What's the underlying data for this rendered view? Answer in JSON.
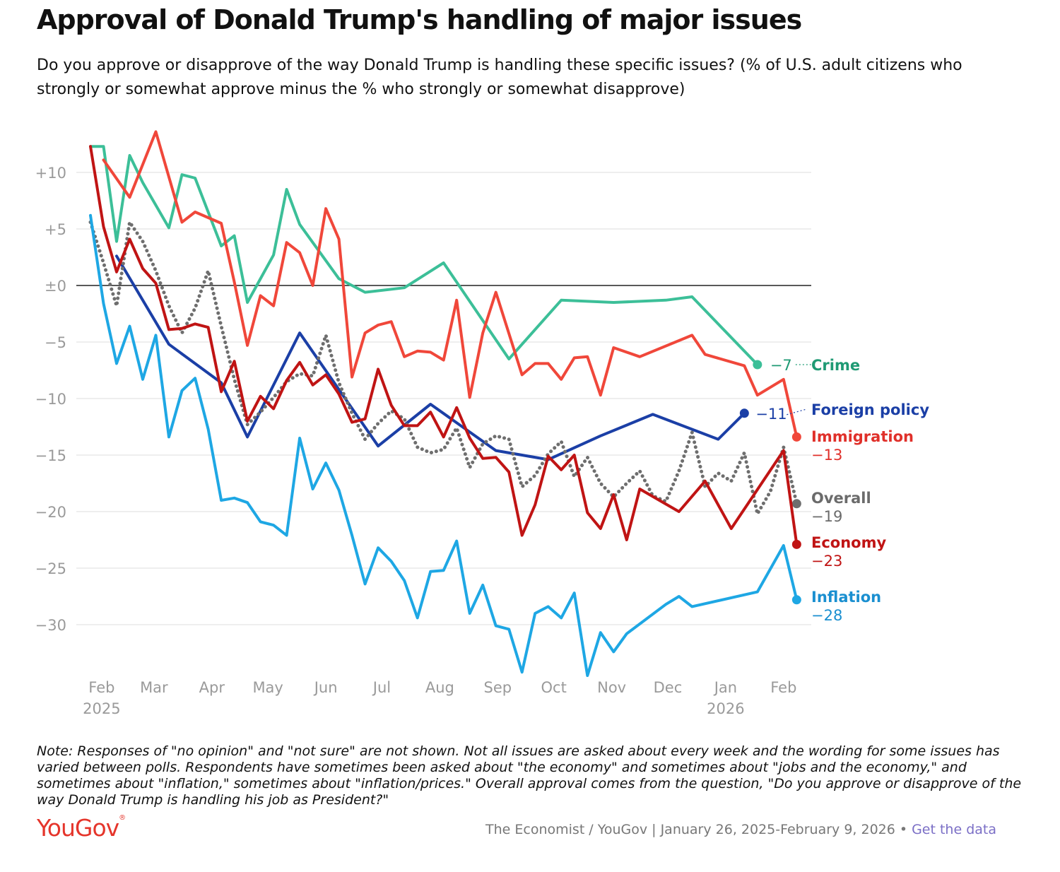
{
  "header": {
    "title": "Approval of Donald Trump's handling of major issues",
    "subtitle": "Do you approve or disapprove of the way Donald Trump is handling these specific issues? (% of U.S. adult citizens who strongly or somewhat approve minus the % who strongly or somewhat disapprove)"
  },
  "footer": {
    "note": "Note: Responses of \"no opinion\" and \"not sure\" are not shown. Not all issues are asked about every week and the wording for some issues has varied between polls. Respondents have sometimes been asked about \"the economy\" and sometimes about \"jobs and the economy,\" and sometimes about \"inflation,\" sometimes about \"inflation/prices.\" Overall approval comes from the question, \"Do you approve or disapprove of the way Donald Trump is handling his job as President?\"",
    "logo_text": "YouGov",
    "logo_mark": "®",
    "source": "The Economist / YouGov | January 26, 2025-February 9, 2026",
    "separator": "•",
    "link_label": "Get the data"
  },
  "chart_data": {
    "type": "line",
    "ylim": [
      -34.5,
      14
    ],
    "xlim": [
      "2025-01-26",
      "2026-02-09"
    ],
    "y_ticks": [
      10,
      5,
      0,
      -5,
      -10,
      -15,
      -20,
      -25,
      -30
    ],
    "y_tick_labels": [
      "+10",
      "+5",
      "±0",
      "−5",
      "−10",
      "−15",
      "−20",
      "−25",
      "−30"
    ],
    "x_ticks": [
      {
        "date": "2025-02-01",
        "label": "Feb",
        "sub": "2025"
      },
      {
        "date": "2025-03-01",
        "label": "Mar",
        "sub": ""
      },
      {
        "date": "2025-04-01",
        "label": "Apr",
        "sub": ""
      },
      {
        "date": "2025-05-01",
        "label": "May",
        "sub": ""
      },
      {
        "date": "2025-06-01",
        "label": "Jun",
        "sub": ""
      },
      {
        "date": "2025-07-01",
        "label": "Jul",
        "sub": ""
      },
      {
        "date": "2025-08-01",
        "label": "Aug",
        "sub": ""
      },
      {
        "date": "2025-09-01",
        "label": "Sep",
        "sub": ""
      },
      {
        "date": "2025-10-01",
        "label": "Oct",
        "sub": ""
      },
      {
        "date": "2025-11-01",
        "label": "Nov",
        "sub": ""
      },
      {
        "date": "2025-12-01",
        "label": "Dec",
        "sub": ""
      },
      {
        "date": "2026-01-01",
        "label": "Jan",
        "sub": "2026"
      },
      {
        "date": "2026-02-01",
        "label": "Feb",
        "sub": ""
      }
    ],
    "grid": true,
    "series": [
      {
        "name": "Crime",
        "value_label": "−7",
        "color": "#3cbf98",
        "label_color": "#1f9a74",
        "style": "solid",
        "points": [
          [
            "2025-01-26",
            12.3
          ],
          [
            "2025-02-02",
            12.3
          ],
          [
            "2025-02-09",
            3.9
          ],
          [
            "2025-02-16",
            11.5
          ],
          [
            "2025-02-23",
            9.1
          ],
          [
            "2025-03-09",
            5.1
          ],
          [
            "2025-03-16",
            9.8
          ],
          [
            "2025-03-23",
            9.5
          ],
          [
            "2025-04-06",
            3.5
          ],
          [
            "2025-04-13",
            4.4
          ],
          [
            "2025-04-20",
            -1.5
          ],
          [
            "2025-05-04",
            2.7
          ],
          [
            "2025-05-11",
            8.5
          ],
          [
            "2025-05-18",
            5.4
          ],
          [
            "2025-06-08",
            0.6
          ],
          [
            "2025-06-22",
            -0.6
          ],
          [
            "2025-07-13",
            -0.2
          ],
          [
            "2025-08-03",
            2.0
          ],
          [
            "2025-09-07",
            -6.5
          ],
          [
            "2025-10-05",
            -1.3
          ],
          [
            "2025-11-02",
            -1.5
          ],
          [
            "2025-11-30",
            -1.3
          ],
          [
            "2025-12-14",
            -1.0
          ],
          [
            "2026-01-18",
            -7.0
          ]
        ]
      },
      {
        "name": "Foreign policy",
        "value_label": "−11",
        "color": "#1b3fa6",
        "label_color": "#1b3fa6",
        "style": "solid",
        "points": [
          [
            "2025-02-09",
            2.6
          ],
          [
            "2025-03-09",
            -5.2
          ],
          [
            "2025-04-06",
            -8.6
          ],
          [
            "2025-04-20",
            -13.4
          ],
          [
            "2025-05-18",
            -4.2
          ],
          [
            "2025-06-29",
            -14.2
          ],
          [
            "2025-07-27",
            -10.5
          ],
          [
            "2025-08-31",
            -14.6
          ],
          [
            "2025-09-28",
            -15.4
          ],
          [
            "2025-10-26",
            -13.3
          ],
          [
            "2025-11-23",
            -11.4
          ],
          [
            "2025-12-28",
            -13.6
          ],
          [
            "2026-01-11",
            -11.3
          ]
        ]
      },
      {
        "name": "Immigration",
        "value_label": "−13",
        "color": "#f0473a",
        "label_color": "#e0302a",
        "style": "solid",
        "points": [
          [
            "2025-02-02",
            11.1
          ],
          [
            "2025-02-16",
            7.8
          ],
          [
            "2025-03-02",
            13.6
          ],
          [
            "2025-03-16",
            5.6
          ],
          [
            "2025-03-23",
            6.5
          ],
          [
            "2025-04-06",
            5.5
          ],
          [
            "2025-04-13",
            0.3
          ],
          [
            "2025-04-20",
            -5.3
          ],
          [
            "2025-04-27",
            -0.9
          ],
          [
            "2025-05-04",
            -1.8
          ],
          [
            "2025-05-11",
            3.8
          ],
          [
            "2025-05-18",
            2.9
          ],
          [
            "2025-05-25",
            0.0
          ],
          [
            "2025-06-01",
            6.8
          ],
          [
            "2025-06-08",
            4.1
          ],
          [
            "2025-06-15",
            -8.1
          ],
          [
            "2025-06-22",
            -4.2
          ],
          [
            "2025-06-29",
            -3.5
          ],
          [
            "2025-07-06",
            -3.2
          ],
          [
            "2025-07-13",
            -6.3
          ],
          [
            "2025-07-20",
            -5.8
          ],
          [
            "2025-07-27",
            -5.9
          ],
          [
            "2025-08-03",
            -6.6
          ],
          [
            "2025-08-10",
            -1.3
          ],
          [
            "2025-08-17",
            -9.9
          ],
          [
            "2025-08-24",
            -4.2
          ],
          [
            "2025-08-31",
            -0.6
          ],
          [
            "2025-09-14",
            -7.9
          ],
          [
            "2025-09-21",
            -6.9
          ],
          [
            "2025-09-28",
            -6.9
          ],
          [
            "2025-10-05",
            -8.3
          ],
          [
            "2025-10-12",
            -6.4
          ],
          [
            "2025-10-19",
            -6.3
          ],
          [
            "2025-10-26",
            -9.7
          ],
          [
            "2025-11-02",
            -5.5
          ],
          [
            "2025-11-16",
            -6.3
          ],
          [
            "2025-12-14",
            -4.4
          ],
          [
            "2025-12-21",
            -6.1
          ],
          [
            "2026-01-11",
            -7.1
          ],
          [
            "2026-01-18",
            -9.7
          ],
          [
            "2026-02-01",
            -8.3
          ],
          [
            "2026-02-08",
            -13.4
          ]
        ]
      },
      {
        "name": "Overall",
        "value_label": "−19",
        "color": "#6e6e6e",
        "label_color": "#6b6b6b",
        "style": "dotted",
        "points": [
          [
            "2025-01-26",
            5.6
          ],
          [
            "2025-02-02",
            2.0
          ],
          [
            "2025-02-09",
            -1.8
          ],
          [
            "2025-02-16",
            5.6
          ],
          [
            "2025-02-23",
            3.9
          ],
          [
            "2025-03-02",
            1.3
          ],
          [
            "2025-03-09",
            -1.8
          ],
          [
            "2025-03-16",
            -4.2
          ],
          [
            "2025-03-23",
            -2.0
          ],
          [
            "2025-03-30",
            1.3
          ],
          [
            "2025-04-06",
            -3.6
          ],
          [
            "2025-04-13",
            -8.3
          ],
          [
            "2025-04-20",
            -12.3
          ],
          [
            "2025-04-27",
            -11.2
          ],
          [
            "2025-05-04",
            -9.9
          ],
          [
            "2025-05-11",
            -8.5
          ],
          [
            "2025-05-18",
            -7.8
          ],
          [
            "2025-05-25",
            -8.0
          ],
          [
            "2025-06-01",
            -4.4
          ],
          [
            "2025-06-08",
            -8.6
          ],
          [
            "2025-06-15",
            -11.3
          ],
          [
            "2025-06-22",
            -13.6
          ],
          [
            "2025-06-29",
            -12.2
          ],
          [
            "2025-07-06",
            -11.1
          ],
          [
            "2025-07-13",
            -11.8
          ],
          [
            "2025-07-20",
            -14.3
          ],
          [
            "2025-07-27",
            -14.8
          ],
          [
            "2025-08-03",
            -14.5
          ],
          [
            "2025-08-10",
            -12.6
          ],
          [
            "2025-08-17",
            -16.1
          ],
          [
            "2025-08-24",
            -14.0
          ],
          [
            "2025-08-31",
            -13.3
          ],
          [
            "2025-09-07",
            -13.6
          ],
          [
            "2025-09-14",
            -17.8
          ],
          [
            "2025-09-21",
            -16.8
          ],
          [
            "2025-09-28",
            -14.9
          ],
          [
            "2025-10-05",
            -13.8
          ],
          [
            "2025-10-12",
            -16.9
          ],
          [
            "2025-10-19",
            -15.2
          ],
          [
            "2025-10-26",
            -17.5
          ],
          [
            "2025-11-02",
            -18.7
          ],
          [
            "2025-11-09",
            -17.5
          ],
          [
            "2025-11-16",
            -16.4
          ],
          [
            "2025-11-23",
            -18.6
          ],
          [
            "2025-11-30",
            -19.1
          ],
          [
            "2025-12-07",
            -16.4
          ],
          [
            "2025-12-14",
            -13.0
          ],
          [
            "2025-12-21",
            -17.8
          ],
          [
            "2025-12-28",
            -16.6
          ],
          [
            "2026-01-04",
            -17.3
          ],
          [
            "2026-01-11",
            -14.8
          ],
          [
            "2026-01-18",
            -20.2
          ],
          [
            "2026-01-25",
            -18.2
          ],
          [
            "2026-02-01",
            -14.3
          ],
          [
            "2026-02-08",
            -19.3
          ]
        ]
      },
      {
        "name": "Economy",
        "value_label": "−23",
        "color": "#c01414",
        "label_color": "#c01414",
        "style": "solid",
        "points": [
          [
            "2025-01-26",
            12.3
          ],
          [
            "2025-02-02",
            5.2
          ],
          [
            "2025-02-09",
            1.2
          ],
          [
            "2025-02-16",
            4.1
          ],
          [
            "2025-02-23",
            1.5
          ],
          [
            "2025-03-02",
            0.2
          ],
          [
            "2025-03-09",
            -3.9
          ],
          [
            "2025-03-16",
            -3.8
          ],
          [
            "2025-03-23",
            -3.4
          ],
          [
            "2025-03-30",
            -3.7
          ],
          [
            "2025-04-06",
            -9.4
          ],
          [
            "2025-04-13",
            -6.7
          ],
          [
            "2025-04-20",
            -12.0
          ],
          [
            "2025-04-27",
            -9.8
          ],
          [
            "2025-05-04",
            -10.9
          ],
          [
            "2025-05-11",
            -8.4
          ],
          [
            "2025-05-18",
            -6.8
          ],
          [
            "2025-05-25",
            -8.8
          ],
          [
            "2025-06-01",
            -7.9
          ],
          [
            "2025-06-08",
            -9.6
          ],
          [
            "2025-06-15",
            -12.1
          ],
          [
            "2025-06-22",
            -11.8
          ],
          [
            "2025-06-29",
            -7.4
          ],
          [
            "2025-07-06",
            -10.6
          ],
          [
            "2025-07-13",
            -12.4
          ],
          [
            "2025-07-20",
            -12.4
          ],
          [
            "2025-07-27",
            -11.2
          ],
          [
            "2025-08-03",
            -13.4
          ],
          [
            "2025-08-10",
            -10.8
          ],
          [
            "2025-08-17",
            -13.5
          ],
          [
            "2025-08-24",
            -15.3
          ],
          [
            "2025-08-31",
            -15.2
          ],
          [
            "2025-09-07",
            -16.5
          ],
          [
            "2025-09-14",
            -22.1
          ],
          [
            "2025-09-21",
            -19.4
          ],
          [
            "2025-09-28",
            -15.1
          ],
          [
            "2025-10-05",
            -16.3
          ],
          [
            "2025-10-12",
            -15.0
          ],
          [
            "2025-10-19",
            -20.1
          ],
          [
            "2025-10-26",
            -21.5
          ],
          [
            "2025-11-02",
            -18.5
          ],
          [
            "2025-11-09",
            -22.5
          ],
          [
            "2025-11-16",
            -18.0
          ],
          [
            "2025-12-07",
            -20.0
          ],
          [
            "2025-12-21",
            -17.3
          ],
          [
            "2026-01-04",
            -21.5
          ],
          [
            "2026-02-01",
            -14.6
          ],
          [
            "2026-02-08",
            -22.9
          ]
        ]
      },
      {
        "name": "Inflation",
        "value_label": "−28",
        "color": "#1ea7e4",
        "label_color": "#1a8fd0",
        "style": "solid",
        "points": [
          [
            "2025-01-26",
            6.2
          ],
          [
            "2025-02-02",
            -1.6
          ],
          [
            "2025-02-09",
            -6.9
          ],
          [
            "2025-02-16",
            -3.6
          ],
          [
            "2025-02-23",
            -8.3
          ],
          [
            "2025-03-02",
            -4.4
          ],
          [
            "2025-03-09",
            -13.4
          ],
          [
            "2025-03-16",
            -9.3
          ],
          [
            "2025-03-23",
            -8.2
          ],
          [
            "2025-03-30",
            -12.7
          ],
          [
            "2025-04-06",
            -19.0
          ],
          [
            "2025-04-13",
            -18.8
          ],
          [
            "2025-04-20",
            -19.2
          ],
          [
            "2025-04-27",
            -20.9
          ],
          [
            "2025-05-04",
            -21.2
          ],
          [
            "2025-05-11",
            -22.1
          ],
          [
            "2025-05-18",
            -13.5
          ],
          [
            "2025-05-25",
            -18.0
          ],
          [
            "2025-06-01",
            -15.7
          ],
          [
            "2025-06-08",
            -18.1
          ],
          [
            "2025-06-15",
            -22.1
          ],
          [
            "2025-06-22",
            -26.4
          ],
          [
            "2025-06-29",
            -23.2
          ],
          [
            "2025-07-06",
            -24.4
          ],
          [
            "2025-07-13",
            -26.1
          ],
          [
            "2025-07-20",
            -29.4
          ],
          [
            "2025-07-27",
            -25.3
          ],
          [
            "2025-08-03",
            -25.2
          ],
          [
            "2025-08-10",
            -22.6
          ],
          [
            "2025-08-17",
            -29.0
          ],
          [
            "2025-08-24",
            -26.5
          ],
          [
            "2025-08-31",
            -30.1
          ],
          [
            "2025-09-07",
            -30.4
          ],
          [
            "2025-09-14",
            -34.2
          ],
          [
            "2025-09-21",
            -29.0
          ],
          [
            "2025-09-28",
            -28.4
          ],
          [
            "2025-10-05",
            -29.4
          ],
          [
            "2025-10-12",
            -27.2
          ],
          [
            "2025-10-19",
            -34.5
          ],
          [
            "2025-10-26",
            -30.7
          ],
          [
            "2025-11-02",
            -32.4
          ],
          [
            "2025-11-09",
            -30.8
          ],
          [
            "2025-11-30",
            -28.2
          ],
          [
            "2025-12-07",
            -27.5
          ],
          [
            "2025-12-14",
            -28.4
          ],
          [
            "2026-01-18",
            -27.1
          ],
          [
            "2026-02-01",
            -23.0
          ],
          [
            "2026-02-08",
            -27.8
          ]
        ]
      }
    ]
  }
}
